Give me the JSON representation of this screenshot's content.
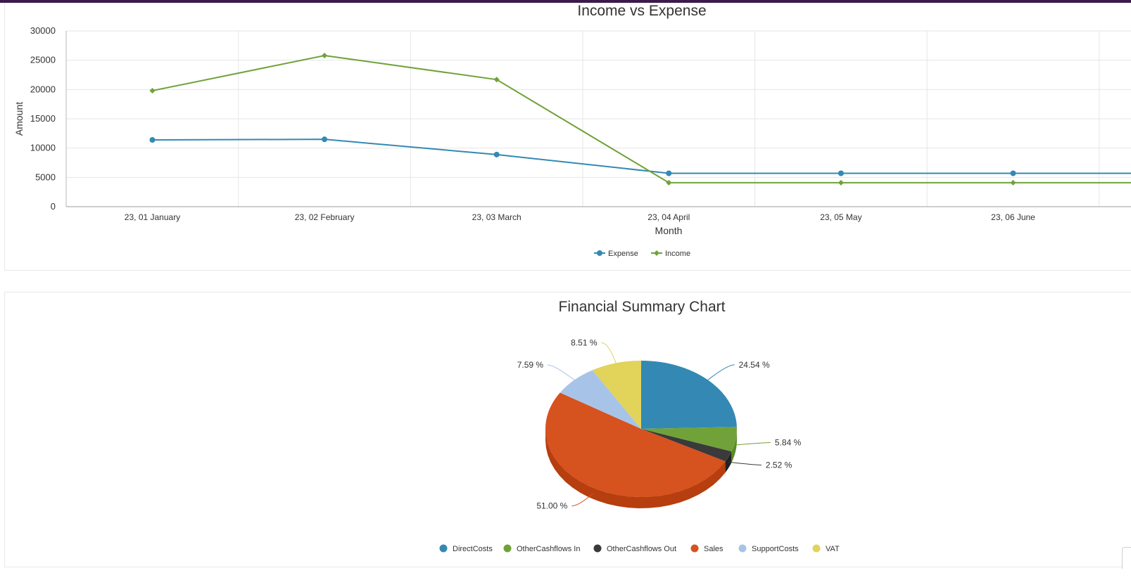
{
  "chart_data": [
    {
      "type": "line",
      "title": "Income vs Expense",
      "xlabel": "Month",
      "ylabel": "Amount",
      "categories": [
        "23, 01 January",
        "23, 02 February",
        "23, 03 March",
        "23, 04 April",
        "23, 05 May",
        "23, 06 June"
      ],
      "yticks": [
        "0",
        "5000",
        "10000",
        "15000",
        "20000",
        "25000",
        "30000"
      ],
      "ylim": [
        0,
        30000
      ],
      "grid": true,
      "legend_position": "bottom",
      "series": [
        {
          "name": "Expense",
          "color": "#3389b3",
          "marker": "circle",
          "values": [
            11400,
            11500,
            8900,
            5700,
            5700,
            5700
          ]
        },
        {
          "name": "Income",
          "color": "#70a239",
          "marker": "diamond",
          "values": [
            19800,
            25800,
            21700,
            4100,
            4100,
            4100
          ]
        }
      ]
    },
    {
      "type": "pie",
      "title": "Financial Summary Chart",
      "legend_position": "bottom",
      "slices": [
        {
          "name": "DirectCosts",
          "value": 24.54,
          "label": "24.54 %",
          "color": "#3389b3",
          "side": "#28708f"
        },
        {
          "name": "OtherCashflows In",
          "value": 5.84,
          "label": "5.84 %",
          "color": "#70a239",
          "side": "#5a8a2c"
        },
        {
          "name": "OtherCashflows Out",
          "value": 2.52,
          "label": "2.52 %",
          "color": "#3a3a3a",
          "side": "#222222"
        },
        {
          "name": "Sales",
          "value": 51.0,
          "label": "51.00 %",
          "color": "#d6521f",
          "side": "#b63e0f"
        },
        {
          "name": "SupportCosts",
          "value": 7.59,
          "label": "7.59 %",
          "color": "#a7c4e8",
          "side": "#8aaad0"
        },
        {
          "name": "VAT",
          "value": 8.51,
          "label": "8.51 %",
          "color": "#e2d35a",
          "side": "#c9b944"
        }
      ]
    }
  ]
}
